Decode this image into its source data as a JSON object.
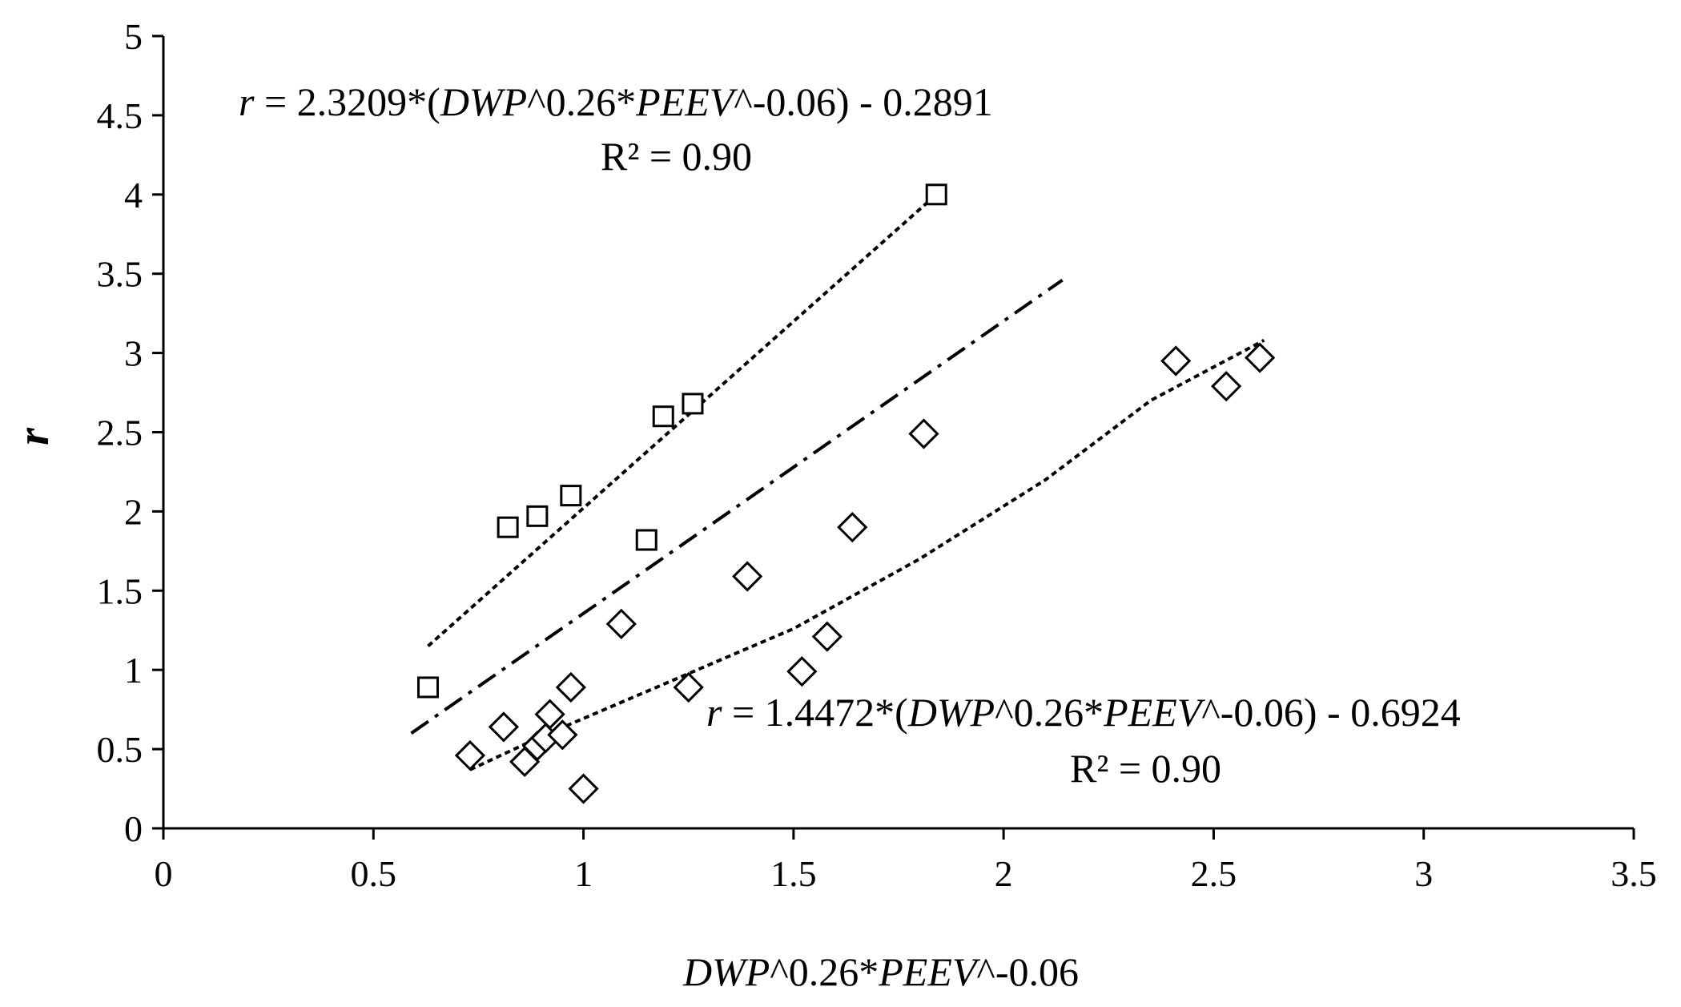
{
  "chart_data": {
    "type": "scatter",
    "title": "",
    "xlabel_parts": [
      {
        "text": "DWP",
        "italic": true
      },
      {
        "text": "^0.26*",
        "italic": false
      },
      {
        "text": "PEEV",
        "italic": true
      },
      {
        "text": "^-0.06",
        "italic": false
      }
    ],
    "ylabel": "r",
    "xlim": [
      0,
      3.5
    ],
    "ylim": [
      0,
      5
    ],
    "x_ticks": [
      0,
      0.5,
      1,
      1.5,
      2,
      2.5,
      3,
      3.5
    ],
    "x_tick_labels": [
      "0",
      "0.5",
      "1",
      "1.5",
      "2",
      "2.5",
      "3",
      "3.5"
    ],
    "y_ticks": [
      0,
      0.5,
      1,
      1.5,
      2,
      2.5,
      3,
      3.5,
      4,
      4.5,
      5
    ],
    "y_tick_labels": [
      "0",
      "0.5",
      "1",
      "1.5",
      "2",
      "2.5",
      "3",
      "3.5",
      "4",
      "4.5",
      "5"
    ],
    "grid": false,
    "legend": "none",
    "series": [
      {
        "marker": "square",
        "x": [
          0.63,
          0.82,
          0.89,
          0.97,
          1.15,
          1.19,
          1.26,
          1.84
        ],
        "y": [
          0.89,
          1.9,
          1.97,
          2.1,
          1.82,
          2.6,
          2.68,
          4.0
        ]
      },
      {
        "marker": "diamond",
        "x": [
          0.73,
          0.81,
          0.86,
          0.89,
          0.91,
          0.92,
          0.95,
          0.97,
          1.0,
          1.09,
          1.25,
          1.39,
          1.52,
          1.58,
          1.64,
          1.81,
          2.41,
          2.53,
          2.61
        ],
        "y": [
          0.46,
          0.64,
          0.42,
          0.52,
          0.57,
          0.72,
          0.59,
          0.89,
          0.25,
          1.29,
          0.89,
          1.59,
          0.99,
          1.21,
          1.9,
          2.49,
          2.95,
          2.79,
          2.97
        ]
      }
    ],
    "trendlines": [
      {
        "style": "dotted",
        "x": [
          0.63,
          1.84
        ],
        "y": [
          1.15,
          4.0
        ]
      },
      {
        "style": "dash-dot",
        "x": [
          0.59,
          2.14
        ],
        "y": [
          0.6,
          3.46
        ]
      },
      {
        "style": "dotted",
        "x": [
          0.73,
          0.9,
          1.2,
          1.5,
          1.8,
          2.1,
          2.35,
          2.62
        ],
        "y": [
          0.37,
          0.58,
          0.92,
          1.26,
          1.7,
          2.2,
          2.7,
          3.08
        ]
      }
    ],
    "annotations": [
      {
        "id": "upper",
        "line1_parts": [
          {
            "text": "r",
            "italic": true
          },
          {
            "text": " = 2.3209*(",
            "italic": false
          },
          {
            "text": "DWP",
            "italic": true
          },
          {
            "text": "^0.26*",
            "italic": false
          },
          {
            "text": "PEEV",
            "italic": true
          },
          {
            "text": "^-0.06) - 0.2891",
            "italic": false
          }
        ],
        "line2": "R² = 0.90"
      },
      {
        "id": "lower",
        "line1_parts": [
          {
            "text": "r",
            "italic": true
          },
          {
            "text": " = 1.4472*(",
            "italic": false
          },
          {
            "text": "DWP",
            "italic": true
          },
          {
            "text": "^0.26*",
            "italic": false
          },
          {
            "text": "PEEV",
            "italic": true
          },
          {
            "text": "^-0.06) - 0.6924",
            "italic": false
          }
        ],
        "line2": "R² = 0.90"
      }
    ],
    "colors": {
      "axis": "#000000",
      "marker_stroke": "#000000",
      "marker_fill": "#ffffff",
      "line": "#000000"
    }
  }
}
